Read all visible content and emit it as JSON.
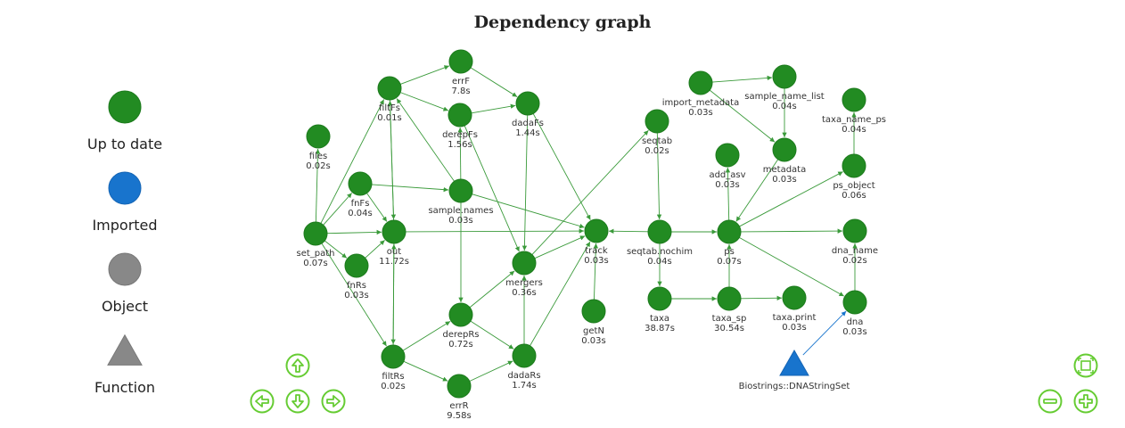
{
  "title": "Dependency graph",
  "legend": [
    {
      "label": "Up to date",
      "shape": "circle",
      "color": "#228b22"
    },
    {
      "label": "Imported",
      "shape": "circle",
      "color": "#1874cd"
    },
    {
      "label": "Object",
      "shape": "circle",
      "color": "#888888"
    },
    {
      "label": "Function",
      "shape": "triangle",
      "color": "#888888"
    }
  ],
  "colors": {
    "up_to_date": "#228b22",
    "imported": "#1874cd",
    "edge_green": "#3a9a3a",
    "edge_blue": "#1874cd",
    "control": "#66cc33"
  },
  "nodes": [
    {
      "id": "files",
      "name": "files",
      "time": "0.02s",
      "status": "up_to_date"
    },
    {
      "id": "set_path",
      "name": "set_path",
      "time": "0.07s",
      "status": "up_to_date"
    },
    {
      "id": "fnFs",
      "name": "fnFs",
      "time": "0.04s",
      "status": "up_to_date"
    },
    {
      "id": "fnRs",
      "name": "fnRs",
      "time": "0.03s",
      "status": "up_to_date"
    },
    {
      "id": "out",
      "name": "out",
      "time": "11.72s",
      "status": "up_to_date"
    },
    {
      "id": "filtFs",
      "name": "filtFs",
      "time": "0.01s",
      "status": "up_to_date"
    },
    {
      "id": "filtRs",
      "name": "filtRs",
      "time": "0.02s",
      "status": "up_to_date"
    },
    {
      "id": "errF",
      "name": "errF",
      "time": "7.8s",
      "status": "up_to_date"
    },
    {
      "id": "derepFs",
      "name": "derepFs",
      "time": "1.56s",
      "status": "up_to_date"
    },
    {
      "id": "sample_names",
      "name": "sample.names",
      "time": "0.03s",
      "status": "up_to_date"
    },
    {
      "id": "derepRs",
      "name": "derepRs",
      "time": "0.72s",
      "status": "up_to_date"
    },
    {
      "id": "errR",
      "name": "errR",
      "time": "9.58s",
      "status": "up_to_date"
    },
    {
      "id": "dadaFs",
      "name": "dadaFs",
      "time": "1.44s",
      "status": "up_to_date"
    },
    {
      "id": "mergers",
      "name": "mergers",
      "time": "0.36s",
      "status": "up_to_date"
    },
    {
      "id": "dadaRs",
      "name": "dadaRs",
      "time": "1.74s",
      "status": "up_to_date"
    },
    {
      "id": "track",
      "name": "track",
      "time": "0.03s",
      "status": "up_to_date"
    },
    {
      "id": "getN",
      "name": "getN",
      "time": "0.03s",
      "status": "up_to_date"
    },
    {
      "id": "seqtab",
      "name": "seqtab",
      "time": "0.02s",
      "status": "up_to_date"
    },
    {
      "id": "seqtab_nochim",
      "name": "seqtab.nochim",
      "time": "0.04s",
      "status": "up_to_date"
    },
    {
      "id": "taxa",
      "name": "taxa",
      "time": "38.87s",
      "status": "up_to_date"
    },
    {
      "id": "import_metadata",
      "name": "import_metadata",
      "time": "0.03s",
      "status": "up_to_date"
    },
    {
      "id": "sample_name_list",
      "name": "sample_name_list",
      "time": "0.04s",
      "status": "up_to_date"
    },
    {
      "id": "add_asv",
      "name": "add_asv",
      "time": "0.03s",
      "status": "up_to_date"
    },
    {
      "id": "metadata",
      "name": "metadata",
      "time": "0.03s",
      "status": "up_to_date"
    },
    {
      "id": "ps",
      "name": "ps",
      "time": "0.07s",
      "status": "up_to_date"
    },
    {
      "id": "taxa_sp",
      "name": "taxa_sp",
      "time": "30.54s",
      "status": "up_to_date"
    },
    {
      "id": "taxa_print",
      "name": "taxa.print",
      "time": "0.03s",
      "status": "up_to_date"
    },
    {
      "id": "taxa_name_ps",
      "name": "taxa_name_ps",
      "time": "0.04s",
      "status": "up_to_date"
    },
    {
      "id": "ps_object",
      "name": "ps_object",
      "time": "0.06s",
      "status": "up_to_date"
    },
    {
      "id": "dna_name",
      "name": "dna_name",
      "time": "0.02s",
      "status": "up_to_date"
    },
    {
      "id": "dna",
      "name": "dna",
      "time": "0.03s",
      "status": "up_to_date"
    },
    {
      "id": "biostrings",
      "name": "Biostrings::DNAStringSet",
      "time": "",
      "status": "imported_function"
    }
  ],
  "edges": [
    [
      "set_path",
      "files"
    ],
    [
      "set_path",
      "fnFs"
    ],
    [
      "set_path",
      "fnRs"
    ],
    [
      "set_path",
      "filtFs"
    ],
    [
      "set_path",
      "filtRs"
    ],
    [
      "set_path",
      "out"
    ],
    [
      "fnFs",
      "out"
    ],
    [
      "fnFs",
      "sample_names"
    ],
    [
      "fnRs",
      "out"
    ],
    [
      "filtFs",
      "out"
    ],
    [
      "filtFs",
      "errF"
    ],
    [
      "filtFs",
      "derepFs"
    ],
    [
      "filtRs",
      "out"
    ],
    [
      "filtRs",
      "errR"
    ],
    [
      "filtRs",
      "derepRs"
    ],
    [
      "out",
      "filtFs"
    ],
    [
      "out",
      "filtRs"
    ],
    [
      "out",
      "track"
    ],
    [
      "errF",
      "dadaFs"
    ],
    [
      "derepFs",
      "dadaFs"
    ],
    [
      "derepFs",
      "mergers"
    ],
    [
      "sample_names",
      "filtFs"
    ],
    [
      "sample_names",
      "derepFs"
    ],
    [
      "sample_names",
      "derepRs"
    ],
    [
      "sample_names",
      "track"
    ],
    [
      "derepRs",
      "dadaRs"
    ],
    [
      "derepRs",
      "mergers"
    ],
    [
      "errR",
      "dadaRs"
    ],
    [
      "dadaFs",
      "mergers"
    ],
    [
      "dadaFs",
      "track"
    ],
    [
      "dadaRs",
      "mergers"
    ],
    [
      "dadaRs",
      "track"
    ],
    [
      "mergers",
      "seqtab"
    ],
    [
      "mergers",
      "track"
    ],
    [
      "getN",
      "track"
    ],
    [
      "seqtab",
      "seqtab_nochim"
    ],
    [
      "seqtab_nochim",
      "track"
    ],
    [
      "seqtab_nochim",
      "taxa"
    ],
    [
      "seqtab_nochim",
      "ps"
    ],
    [
      "taxa",
      "taxa_sp"
    ],
    [
      "taxa_sp",
      "taxa_print"
    ],
    [
      "taxa_sp",
      "ps"
    ],
    [
      "import_metadata",
      "sample_name_list"
    ],
    [
      "import_metadata",
      "metadata"
    ],
    [
      "sample_name_list",
      "metadata"
    ],
    [
      "metadata",
      "ps"
    ],
    [
      "ps",
      "add_asv"
    ],
    [
      "ps",
      "ps_object"
    ],
    [
      "ps",
      "dna_name"
    ],
    [
      "ps",
      "dna"
    ],
    [
      "ps_object",
      "taxa_name_ps"
    ],
    [
      "dna",
      "dna_name"
    ],
    [
      "biostrings",
      "dna"
    ]
  ],
  "controls": [
    {
      "id": "up",
      "icon": "arrow-up-icon"
    },
    {
      "id": "left",
      "icon": "arrow-left-icon"
    },
    {
      "id": "down",
      "icon": "arrow-down-icon"
    },
    {
      "id": "right",
      "icon": "arrow-right-icon"
    },
    {
      "id": "fit",
      "icon": "fit-icon"
    },
    {
      "id": "zoom_out",
      "icon": "zoom-out-icon"
    },
    {
      "id": "zoom_in",
      "icon": "zoom-in-icon"
    }
  ]
}
